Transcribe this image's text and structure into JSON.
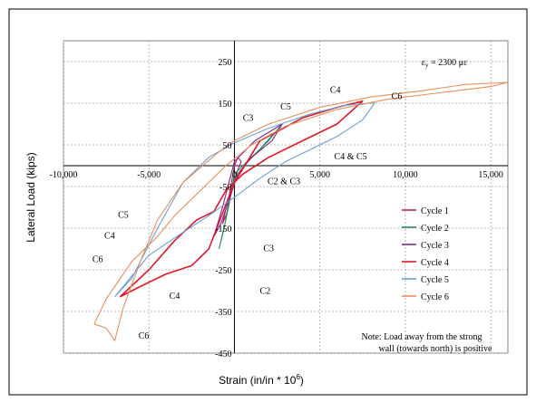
{
  "chart_data": {
    "type": "line",
    "xlabel_main": "Strain (in/in * 10",
    "xlabel_sup": "6",
    "xlabel_tail": ")",
    "ylabel": "Lateral Load (kips)",
    "xlim": [
      -10000,
      16000
    ],
    "ylim": [
      -450,
      300
    ],
    "x_ticks": [
      -10000,
      -5000,
      0,
      5000,
      10000,
      15000
    ],
    "x_tick_labels": [
      "-10,000",
      "-5,000",
      "0",
      "5,000",
      "10,000",
      "15,000"
    ],
    "y_ticks": [
      250,
      150,
      50,
      -50,
      -150,
      -250,
      -350,
      -450
    ],
    "y_tick_labels": [
      "250",
      "150",
      "50",
      "-50",
      "-150",
      "-250",
      "-350",
      "-450"
    ],
    "grid": true,
    "legend_position": "right",
    "yield_label_main": "ε",
    "yield_label_sub": "y",
    "yield_label_tail": " = 2300 με",
    "note_line1": "Note:  Load away from the strong",
    "note_line2": "wall (towards north) is positive",
    "annotations": [
      {
        "text": "C4",
        "x": 5900,
        "y": 175
      },
      {
        "text": "C5",
        "x": 3000,
        "y": 135
      },
      {
        "text": "C6",
        "x": 9500,
        "y": 160
      },
      {
        "text": "C3",
        "x": 800,
        "y": 108
      },
      {
        "text": "C4 & C5",
        "x": 6800,
        "y": 15
      },
      {
        "text": "C2 & C3",
        "x": 2900,
        "y": -45
      },
      {
        "text": "C5",
        "x": -6500,
        "y": -125
      },
      {
        "text": "C4",
        "x": -7300,
        "y": -175
      },
      {
        "text": "C6",
        "x": -8000,
        "y": -232
      },
      {
        "text": "C4",
        "x": -3500,
        "y": -320
      },
      {
        "text": "C3",
        "x": 2000,
        "y": -205
      },
      {
        "text": "C2",
        "x": 1800,
        "y": -308
      },
      {
        "text": "C6",
        "x": -5300,
        "y": -415
      }
    ],
    "series": [
      {
        "name": "Cycle 1",
        "color": "#a52a6a",
        "x": [
          -700,
          -300,
          0,
          200,
          400,
          200,
          -100,
          -400,
          -700
        ],
        "y": [
          -140,
          -70,
          0,
          20,
          10,
          -10,
          -50,
          -110,
          -140
        ]
      },
      {
        "name": "Cycle 2",
        "color": "#2e8b57",
        "x": [
          -900,
          -500,
          0,
          1500,
          2700,
          2000,
          800,
          0,
          -300,
          -600,
          -900
        ],
        "y": [
          -200,
          -130,
          -20,
          40,
          95,
          60,
          10,
          -30,
          -80,
          -150,
          -200
        ]
      },
      {
        "name": "Cycle 3",
        "color": "#7a2a8a",
        "x": [
          -1200,
          -700,
          0,
          1200,
          2800,
          2200,
          1000,
          200,
          -300,
          -800,
          -1200
        ],
        "y": [
          -170,
          -100,
          10,
          60,
          100,
          60,
          20,
          -20,
          -80,
          -140,
          -170
        ]
      },
      {
        "name": "Cycle 4",
        "color": "#e0182a",
        "x": [
          -6700,
          -5500,
          -4000,
          -2500,
          -1500,
          0,
          1500,
          4000,
          6000,
          7000,
          7500,
          6000,
          4000,
          2000,
          500,
          -500,
          -1200,
          -2200,
          -3500,
          -5000,
          -6700
        ],
        "y": [
          -315,
          -290,
          -260,
          -240,
          -200,
          -40,
          60,
          115,
          140,
          150,
          155,
          100,
          60,
          20,
          -20,
          -60,
          -110,
          -130,
          -180,
          -250,
          -315
        ]
      },
      {
        "name": "Cycle 5",
        "color": "#6aa0d8",
        "x": [
          -7000,
          -6000,
          -4500,
          -3000,
          -1500,
          0,
          2000,
          4500,
          6500,
          7800,
          8200,
          7500,
          6000,
          4500,
          3000,
          1500,
          200,
          -1500,
          -3000,
          -5000,
          -7000
        ],
        "y": [
          -315,
          -270,
          -150,
          -40,
          20,
          55,
          90,
          125,
          145,
          150,
          150,
          110,
          70,
          40,
          10,
          -30,
          -70,
          -120,
          -160,
          -215,
          -315
        ]
      },
      {
        "name": "Cycle 6",
        "color": "#e8905a",
        "x": [
          -8200,
          -7500,
          -7000,
          -6500,
          -5500,
          -4500,
          -3000,
          -1000,
          0,
          2000,
          5000,
          8000,
          11000,
          13500,
          16000,
          15000,
          12000,
          9000,
          6000,
          3000,
          1000,
          -500,
          -2000,
          -3500,
          -4500,
          -6000,
          -7500,
          -8200
        ],
        "y": [
          -380,
          -390,
          -420,
          -340,
          -230,
          -130,
          -40,
          30,
          60,
          100,
          140,
          165,
          180,
          195,
          200,
          190,
          175,
          160,
          135,
          95,
          50,
          0,
          -60,
          -120,
          -170,
          -230,
          -320,
          -380
        ]
      }
    ]
  }
}
